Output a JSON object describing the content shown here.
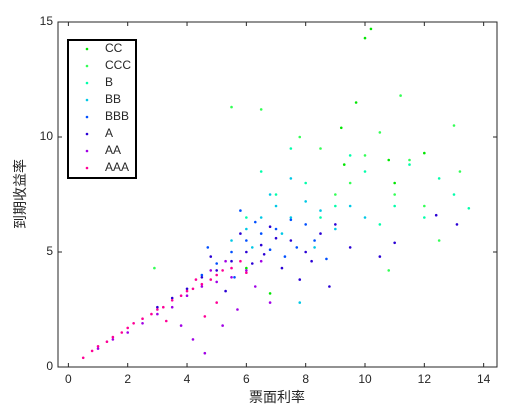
{
  "chart_data": {
    "type": "scatter",
    "xlabel": "票面利率",
    "ylabel": "到期收益率",
    "xlim": [
      -0.35,
      14.45
    ],
    "ylim": [
      0,
      15
    ],
    "xticks": [
      0,
      2,
      4,
      6,
      8,
      10,
      12,
      14
    ],
    "yticks": [
      0,
      5,
      10,
      15
    ],
    "legend": "northwest",
    "series": [
      {
        "name": "CC",
        "color": "#00e600",
        "x": [
          10,
          10.2,
          9.7,
          9.2,
          10.8,
          12,
          11,
          6,
          6.8,
          9.3
        ],
        "y": [
          14.3,
          14.7,
          11.5,
          10.4,
          9,
          9.3,
          8,
          4.3,
          3.2,
          8.8
        ]
      },
      {
        "name": "CCC",
        "color": "#33ff55",
        "x": [
          5.5,
          9.5,
          10,
          10.5,
          11,
          12,
          13,
          11.5,
          8.5,
          9,
          12.5,
          10.8,
          7.8,
          13.2,
          11.2,
          6.5,
          2.9
        ],
        "y": [
          11.3,
          8,
          9.2,
          10.2,
          7.5,
          7,
          10.5,
          9,
          9.5,
          7.5,
          5.5,
          4.2,
          10,
          8.5,
          11.8,
          11.2,
          4.3
        ]
      },
      {
        "name": "B",
        "color": "#00ffaa",
        "x": [
          6,
          7,
          8,
          9,
          10,
          11,
          12,
          13,
          6.5,
          8.5,
          10.5,
          11.5,
          9.5,
          12.5,
          13.5,
          7.5
        ],
        "y": [
          6.5,
          7.5,
          8,
          7,
          8.5,
          7,
          6.5,
          7.5,
          8.5,
          6.5,
          6.2,
          8.8,
          9.2,
          8.2,
          6.9,
          9.5
        ]
      },
      {
        "name": "BB",
        "color": "#00c8e6",
        "x": [
          5.5,
          6,
          6.5,
          7,
          7.5,
          8,
          8.5,
          9,
          7.2,
          6.8,
          8.3,
          9.5,
          10,
          6.2,
          7.8,
          7.5
        ],
        "y": [
          5.5,
          6,
          6.5,
          7,
          6.5,
          7.2,
          6.8,
          6,
          5.8,
          7.5,
          5.2,
          7,
          6.5,
          5.2,
          2.8,
          8.2
        ]
      },
      {
        "name": "BBB",
        "color": "#0050ff",
        "x": [
          4.5,
          5,
          5.5,
          6,
          6.5,
          7,
          7.5,
          8,
          6.8,
          7.3,
          8.3,
          5.8,
          6.3,
          7.7,
          4.7,
          8.7,
          5.6
        ],
        "y": [
          4,
          4.5,
          5,
          5.5,
          5.8,
          6,
          6.4,
          6.2,
          5.1,
          4.8,
          5.5,
          6.8,
          6.3,
          5.2,
          5.2,
          4.7,
          3.9
        ]
      },
      {
        "name": "A",
        "color": "#2a00d5",
        "x": [
          3,
          3.5,
          4,
          4.5,
          5,
          5.5,
          6,
          6.5,
          7,
          7.5,
          8,
          8.5,
          5.8,
          6.2,
          7.2,
          8.2,
          9,
          6.8,
          5.3,
          7.8,
          6.6,
          4.8,
          9.5,
          10.5,
          11,
          12.4,
          13.1,
          8.8
        ],
        "y": [
          2.6,
          3,
          3.4,
          3.9,
          4.2,
          4.6,
          5,
          5.3,
          5.6,
          5.5,
          5,
          5.8,
          5.8,
          4.5,
          4.3,
          4.6,
          6.2,
          6.1,
          3.3,
          3.8,
          4.9,
          4.8,
          5.2,
          4.8,
          5.4,
          6.6,
          6.2,
          3.5
        ]
      },
      {
        "name": "AA",
        "color": "#a000e6",
        "x": [
          1,
          1.5,
          2,
          2.5,
          3,
          3.5,
          4,
          4.5,
          5,
          5.5,
          6,
          4.2,
          5.2,
          6.3,
          5.7,
          3.8,
          4.6,
          6.5,
          5.3,
          4.8,
          6.8
        ],
        "y": [
          0.8,
          1.2,
          1.5,
          1.9,
          2.3,
          2.6,
          3.1,
          3.5,
          3.7,
          3.9,
          4.2,
          1.2,
          1.8,
          3.5,
          2.5,
          1.8,
          0.6,
          4.6,
          4.6,
          4.2,
          2.8
        ]
      },
      {
        "name": "AAA",
        "color": "#ff0096",
        "x": [
          0.5,
          0.8,
          1,
          1.3,
          1.5,
          1.8,
          2,
          2.2,
          2.5,
          2.8,
          3,
          3.2,
          3.5,
          3.8,
          4,
          4.2,
          4.5,
          4.8,
          5,
          5.2,
          5.5,
          4.6,
          5,
          3.3,
          5.8,
          4.3,
          6
        ],
        "y": [
          0.4,
          0.7,
          0.9,
          1.1,
          1.3,
          1.5,
          1.7,
          1.9,
          2.1,
          2.3,
          2.5,
          2.6,
          2.9,
          3.1,
          3.3,
          3.4,
          3.6,
          3.8,
          4,
          4.2,
          4.3,
          2.2,
          2.8,
          2,
          4.6,
          3.8,
          4.1
        ]
      }
    ]
  }
}
